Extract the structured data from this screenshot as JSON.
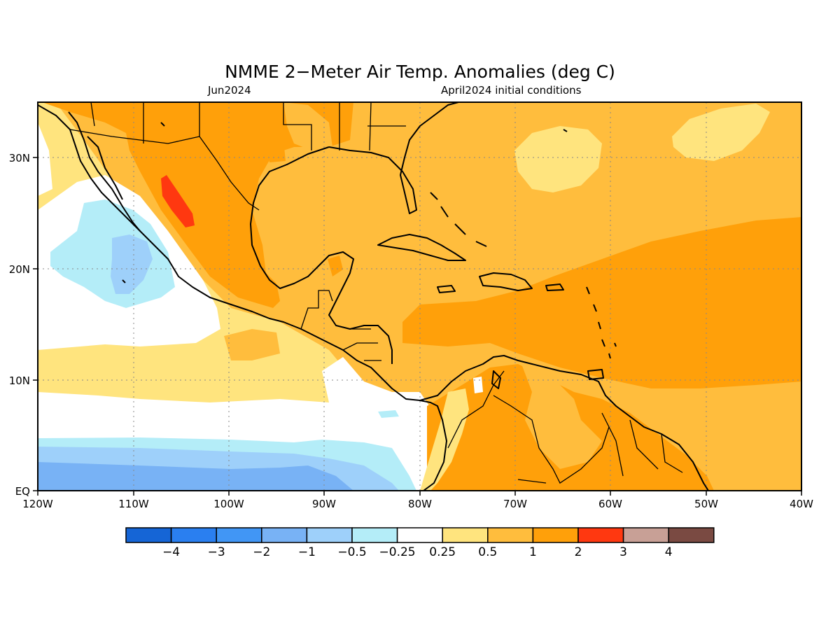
{
  "title": "NMME 2−Meter Air Temp. Anomalies (deg C)",
  "subtitle_left": "Jun2024",
  "subtitle_right": "April2024 initial conditions",
  "x_ticks": [
    "120W",
    "110W",
    "100W",
    "90W",
    "80W",
    "70W",
    "60W",
    "50W",
    "40W"
  ],
  "y_ticks": [
    "EQ",
    "10N",
    "20N",
    "30N"
  ],
  "colorbar": {
    "colors": [
      "#1565d6",
      "#2a7ff0",
      "#4196f5",
      "#78b2f5",
      "#9ed0fa",
      "#b4edf8",
      "#ffffff",
      "#ffe47e",
      "#ffbd3d",
      "#ffa00a",
      "#ff3810",
      "#c8a096",
      "#7a4a42"
    ],
    "labels": [
      "−4",
      "−3",
      "−2",
      "−1",
      "−0.5",
      "−0.25",
      "0.25",
      "0.5",
      "1",
      "2",
      "3",
      "4"
    ]
  }
}
